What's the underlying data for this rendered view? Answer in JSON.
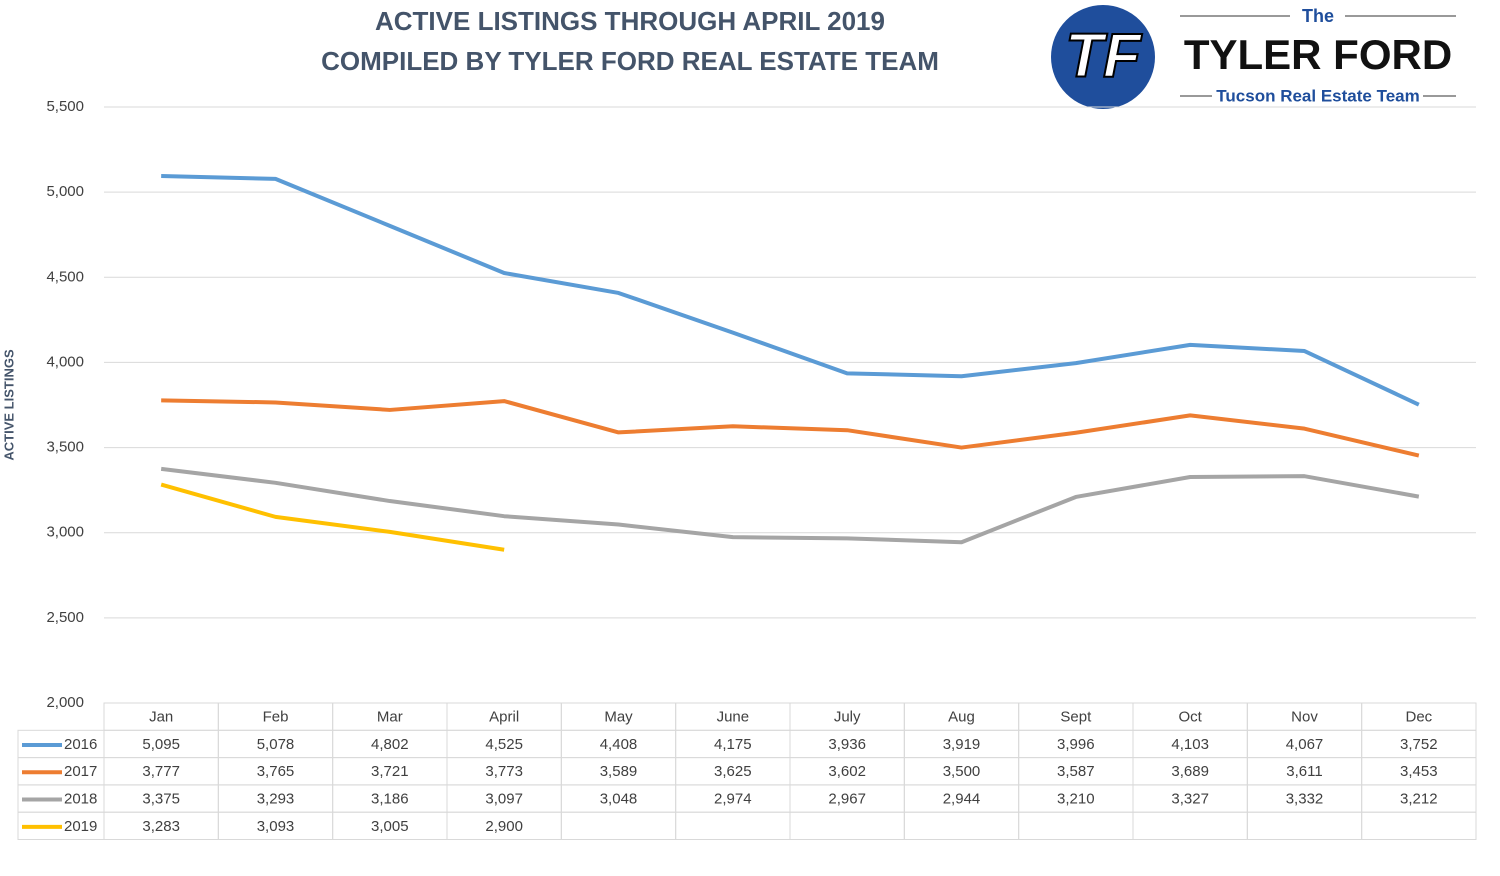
{
  "chart_data": {
    "type": "line",
    "title": "ACTIVE LISTINGS THROUGH APRIL 2019",
    "subtitle": "COMPILED BY TYLER FORD REAL ESTATE TEAM",
    "y_label": "ACTIVE LISTINGS",
    "categories": [
      "Jan",
      "Feb",
      "Mar",
      "April",
      "May",
      "June",
      "July",
      "Aug",
      "Sept",
      "Oct",
      "Nov",
      "Dec"
    ],
    "ylim": [
      2000,
      5500
    ],
    "yticks": [
      {
        "value": 2000,
        "label": "2,000"
      },
      {
        "value": 2500,
        "label": "2,500"
      },
      {
        "value": 3000,
        "label": "3,000"
      },
      {
        "value": 3500,
        "label": "3,500"
      },
      {
        "value": 4000,
        "label": "4,000"
      },
      {
        "value": 4500,
        "label": "4,500"
      },
      {
        "value": 5000,
        "label": "5,000"
      },
      {
        "value": 5500,
        "label": "5,500"
      }
    ],
    "grid": true,
    "series": [
      {
        "name": "2016",
        "color": "#5b9bd5",
        "values": [
          5095,
          5078,
          4802,
          4525,
          4408,
          4175,
          3936,
          3919,
          3996,
          4103,
          4067,
          3752
        ],
        "value_labels": [
          "5,095",
          "5,078",
          "4,802",
          "4,525",
          "4,408",
          "4,175",
          "3,936",
          "3,919",
          "3,996",
          "4,103",
          "4,067",
          "3,752"
        ]
      },
      {
        "name": "2017",
        "color": "#ed7d31",
        "values": [
          3777,
          3765,
          3721,
          3773,
          3589,
          3625,
          3602,
          3500,
          3587,
          3689,
          3611,
          3453
        ],
        "value_labels": [
          "3,777",
          "3,765",
          "3,721",
          "3,773",
          "3,589",
          "3,625",
          "3,602",
          "3,500",
          "3,587",
          "3,689",
          "3,611",
          "3,453"
        ]
      },
      {
        "name": "2018",
        "color": "#a5a5a5",
        "values": [
          3375,
          3293,
          3186,
          3097,
          3048,
          2974,
          2967,
          2944,
          3210,
          3327,
          3332,
          3212
        ],
        "value_labels": [
          "3,375",
          "3,293",
          "3,186",
          "3,097",
          "3,048",
          "2,974",
          "2,967",
          "2,944",
          "3,210",
          "3,327",
          "3,332",
          "3,212"
        ]
      },
      {
        "name": "2019",
        "color": "#ffc000",
        "values": [
          3283,
          3093,
          3005,
          2900,
          null,
          null,
          null,
          null,
          null,
          null,
          null,
          null
        ],
        "value_labels": [
          "3,283",
          "3,093",
          "3,005",
          "2,900",
          null,
          null,
          null,
          null,
          null,
          null,
          null,
          null
        ]
      }
    ]
  },
  "logo": {
    "initials": "TF",
    "the": "The",
    "name": "TYLER FORD",
    "tagline": "Tucson Real Estate Team"
  }
}
